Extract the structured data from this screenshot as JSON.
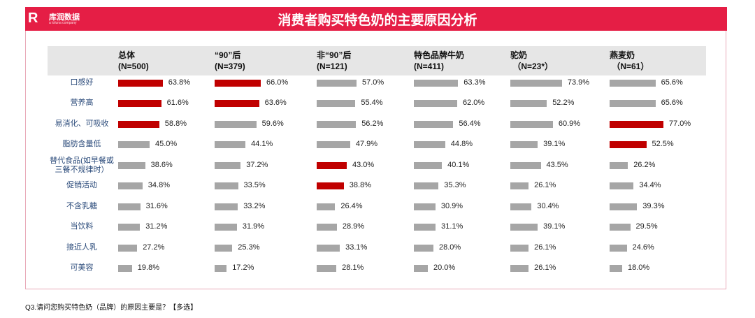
{
  "brand": {
    "logo_mark": "R",
    "name": "库润数据",
    "tagline": "a toluna company"
  },
  "chart_data": {
    "type": "table",
    "title": "消费者购买特色奶的主要原因分析",
    "columns": [
      {
        "label": "总体\n(N=500)"
      },
      {
        "label": "“90”后\n(N=379)"
      },
      {
        "label": "非“90”后\n(N=121)"
      },
      {
        "label": "特色品牌牛奶\n(N=411)"
      },
      {
        "label": "驼奶\n （N=23*）"
      },
      {
        "label": "燕麦奶\n （N=61）"
      }
    ],
    "categories": [
      "口感好",
      "营养高",
      "易消化、可吸收",
      "脂肪含量低",
      "替代食品(如早餐或\n三餐不规律时）",
      "促销活动",
      "不含乳糖",
      "当饮料",
      "接近人乳",
      "可美容"
    ],
    "series": [
      {
        "name": "总体",
        "values": [
          63.8,
          61.6,
          58.8,
          45.0,
          38.6,
          34.8,
          31.6,
          31.2,
          27.2,
          19.8
        ],
        "highlight": [
          0,
          1,
          2
        ]
      },
      {
        "name": "“90”后",
        "values": [
          66.0,
          63.6,
          59.6,
          44.1,
          37.2,
          33.5,
          33.2,
          31.9,
          25.3,
          17.2
        ],
        "highlight": [
          0,
          1
        ]
      },
      {
        "name": "非“90”后",
        "values": [
          57.0,
          55.4,
          56.2,
          47.9,
          43.0,
          38.8,
          26.4,
          28.9,
          33.1,
          28.1
        ],
        "highlight": [
          4,
          5
        ]
      },
      {
        "name": "特色品牌牛奶",
        "values": [
          63.3,
          62.0,
          56.4,
          44.8,
          40.1,
          35.3,
          30.9,
          31.1,
          28.0,
          20.0
        ],
        "highlight": []
      },
      {
        "name": "驼奶",
        "values": [
          73.9,
          52.2,
          60.9,
          39.1,
          43.5,
          26.1,
          30.4,
          39.1,
          26.1,
          26.1
        ],
        "highlight": []
      },
      {
        "name": "燕麦奶",
        "values": [
          65.6,
          65.6,
          77.0,
          52.5,
          26.2,
          34.4,
          39.3,
          29.5,
          24.6,
          18.0
        ],
        "highlight": [
          2,
          3
        ]
      }
    ],
    "unit": "%",
    "colors": {
      "highlight": "#c00000",
      "normal": "#a6a6a6",
      "band": "#e51e45"
    }
  },
  "footer": "Q3.请问您购买特色奶（品牌）的原因主要是？【多选】"
}
